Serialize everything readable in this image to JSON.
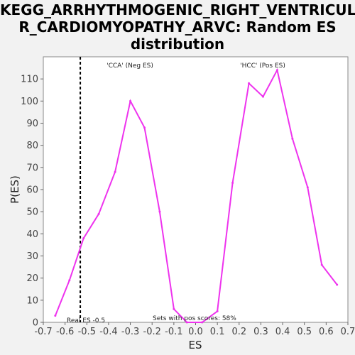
{
  "chart_data": {
    "type": "line",
    "title_lines": [
      "KEGG_ARRHYTHMOGENIC_RIGHT_VENTRICULA",
      "R_CARDIOMYOPATHY_ARVC: Random ES",
      "distribution"
    ],
    "xlabel": "ES",
    "ylabel": "P(ES)",
    "xlim": [
      -0.7,
      0.7
    ],
    "ylim": [
      0,
      120
    ],
    "xticks": [
      -0.7,
      -0.6,
      -0.5,
      -0.4,
      -0.3,
      -0.2,
      -0.1,
      0.0,
      0.1,
      0.2,
      0.3,
      0.4,
      0.5,
      0.6,
      0.7
    ],
    "xtick_labels": [
      "-0.7",
      "-0.6",
      "-0.5",
      "-0.4",
      "-0.3",
      "-0.2",
      "-0.1",
      "0.0",
      "0.1",
      "0.2",
      "0.3",
      "0.4",
      "0.5",
      "0.6",
      "0.7"
    ],
    "yticks": [
      0,
      10,
      20,
      30,
      40,
      50,
      60,
      70,
      80,
      90,
      100,
      110
    ],
    "ytick_labels": [
      "0",
      "10",
      "20",
      "30",
      "40",
      "50",
      "60",
      "70",
      "80",
      "90",
      "100",
      "110"
    ],
    "series": [
      {
        "color": "#ee33ee",
        "points": [
          [
            -0.645,
            3
          ],
          [
            -0.58,
            19
          ],
          [
            -0.515,
            38
          ],
          [
            -0.445,
            49
          ],
          [
            -0.37,
            68
          ],
          [
            -0.3,
            100
          ],
          [
            -0.235,
            88
          ],
          [
            -0.165,
            50
          ],
          [
            -0.1,
            6
          ],
          [
            -0.04,
            0
          ],
          [
            0.03,
            0
          ],
          [
            0.1,
            5
          ],
          [
            0.17,
            63
          ],
          [
            0.245,
            108
          ],
          [
            0.31,
            102
          ],
          [
            0.375,
            114
          ],
          [
            0.445,
            83
          ],
          [
            0.515,
            61
          ],
          [
            0.58,
            26
          ],
          [
            0.65,
            17
          ]
        ]
      }
    ],
    "real_es": -0.53,
    "real_es_label": "Real ES -0.5",
    "annotations": {
      "neg_label": "'CCA' (Neg ES)",
      "pos_label": "'HCC' (Pos ES)",
      "sets_label": "Sets with pos scores: 58%"
    },
    "colors": {
      "neg_label": "#2222bb",
      "pos_label": "#cc2222",
      "line": "#ee33ee",
      "real_es_line": "#000000"
    },
    "grid": false
  }
}
